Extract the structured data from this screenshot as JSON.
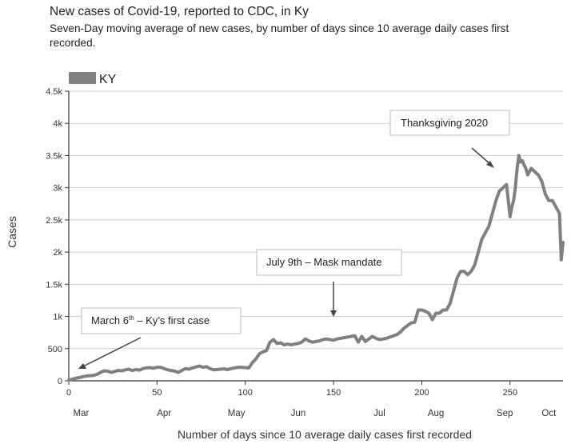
{
  "header": {
    "title": "New cases of Covid-19, reported to CDC, in Ky",
    "subtitle": "Seven-Day moving average of new cases, by number of days since 10 average daily cases first recorded."
  },
  "chart_data": {
    "type": "line",
    "title": "New cases of Covid-19, reported to CDC, in Ky",
    "subtitle": "Seven-Day moving average of new cases, by number of days since 10 average daily cases first recorded.",
    "xlabel": "Number of days since 10 average daily cases first recorded",
    "ylabel": "Cases",
    "xlim": [
      0,
      280
    ],
    "ylim": [
      0,
      4500
    ],
    "grid": true,
    "legend": {
      "position": "top-left",
      "entries": [
        "KY"
      ],
      "color": "#808080"
    },
    "x_ticks": [
      0,
      50,
      100,
      150,
      200,
      250
    ],
    "x_tick_labels": [
      "0",
      "50",
      "100",
      "150",
      "200",
      "250"
    ],
    "y_ticks": [
      0,
      500,
      1000,
      1500,
      2000,
      2500,
      3000,
      3500,
      4000,
      4500
    ],
    "y_tick_labels": [
      "0",
      "500",
      "1k",
      "1.5k",
      "2k",
      "2.5k",
      "3k",
      "3.5k",
      "4k",
      "4.5k"
    ],
    "months": [
      {
        "label": "Mar",
        "day": 7
      },
      {
        "label": "Apr",
        "day": 54
      },
      {
        "label": "May",
        "day": 95
      },
      {
        "label": "Jun",
        "day": 130
      },
      {
        "label": "Jul",
        "day": 176
      },
      {
        "label": "Aug",
        "day": 208
      },
      {
        "label": "Sep",
        "day": 247
      },
      {
        "label": "Oct",
        "day": 272
      }
    ],
    "annotations": [
      {
        "text": "March 6th – Ky’s first case",
        "main": "March 6",
        "sup": "th",
        "rest": " – Ky’s first case",
        "day": 4,
        "value": 130
      },
      {
        "text": "July 9th – Mask mandate",
        "day": 150,
        "value": 960
      },
      {
        "text": "Thanksgiving 2020",
        "day": 240,
        "value": 3300
      }
    ],
    "series": [
      {
        "name": "KY",
        "color": "#808080",
        "x": [
          0,
          2,
          4,
          6,
          8,
          10,
          12,
          14,
          16,
          18,
          20,
          22,
          24,
          26,
          28,
          30,
          32,
          34,
          36,
          38,
          40,
          42,
          44,
          46,
          48,
          50,
          52,
          54,
          56,
          58,
          60,
          62,
          64,
          66,
          68,
          70,
          72,
          74,
          76,
          78,
          80,
          82,
          84,
          86,
          88,
          90,
          92,
          94,
          96,
          98,
          100,
          102,
          104,
          106,
          108,
          110,
          112,
          114,
          116,
          118,
          120,
          122,
          124,
          126,
          128,
          130,
          132,
          134,
          136,
          138,
          140,
          142,
          144,
          146,
          148,
          150,
          152,
          154,
          156,
          158,
          160,
          162,
          164,
          166,
          168,
          170,
          172,
          174,
          176,
          178,
          180,
          182,
          184,
          186,
          188,
          190,
          192,
          194,
          196,
          198,
          200,
          202,
          204,
          206,
          208,
          210,
          212,
          214,
          216,
          218,
          220,
          222,
          224,
          226,
          228,
          230,
          232,
          234,
          236,
          238,
          240,
          242,
          244,
          246,
          248,
          250,
          251,
          252,
          253,
          254,
          255,
          256,
          257,
          258,
          259,
          260,
          262,
          264,
          266,
          268,
          270,
          272,
          274,
          276,
          278,
          279,
          280
        ],
        "y": [
          10,
          25,
          40,
          50,
          65,
          75,
          80,
          85,
          100,
          130,
          155,
          150,
          130,
          145,
          160,
          155,
          170,
          180,
          160,
          175,
          165,
          190,
          200,
          205,
          195,
          210,
          210,
          190,
          170,
          160,
          150,
          130,
          160,
          190,
          180,
          200,
          215,
          230,
          210,
          220,
          190,
          170,
          175,
          180,
          185,
          175,
          190,
          200,
          210,
          210,
          205,
          200,
          280,
          340,
          420,
          450,
          470,
          600,
          640,
          580,
          590,
          560,
          570,
          560,
          570,
          580,
          600,
          650,
          620,
          600,
          610,
          620,
          640,
          650,
          640,
          630,
          650,
          660,
          670,
          680,
          690,
          700,
          600,
          690,
          610,
          650,
          690,
          660,
          640,
          650,
          660,
          680,
          700,
          720,
          760,
          820,
          860,
          900,
          910,
          1100,
          1100,
          1080,
          1050,
          950,
          1050,
          1050,
          1100,
          1100,
          1200,
          1400,
          1600,
          1700,
          1700,
          1650,
          1700,
          1800,
          2000,
          2200,
          2300,
          2400,
          2600,
          2800,
          2950,
          3000,
          3050,
          2550,
          2700,
          2800,
          3000,
          3300,
          3500,
          3400,
          3420,
          3350,
          3300,
          3200,
          3300,
          3250,
          3200,
          3100,
          2900,
          2800,
          2800,
          2700,
          2600,
          1880,
          2150
        ]
      }
    ]
  }
}
